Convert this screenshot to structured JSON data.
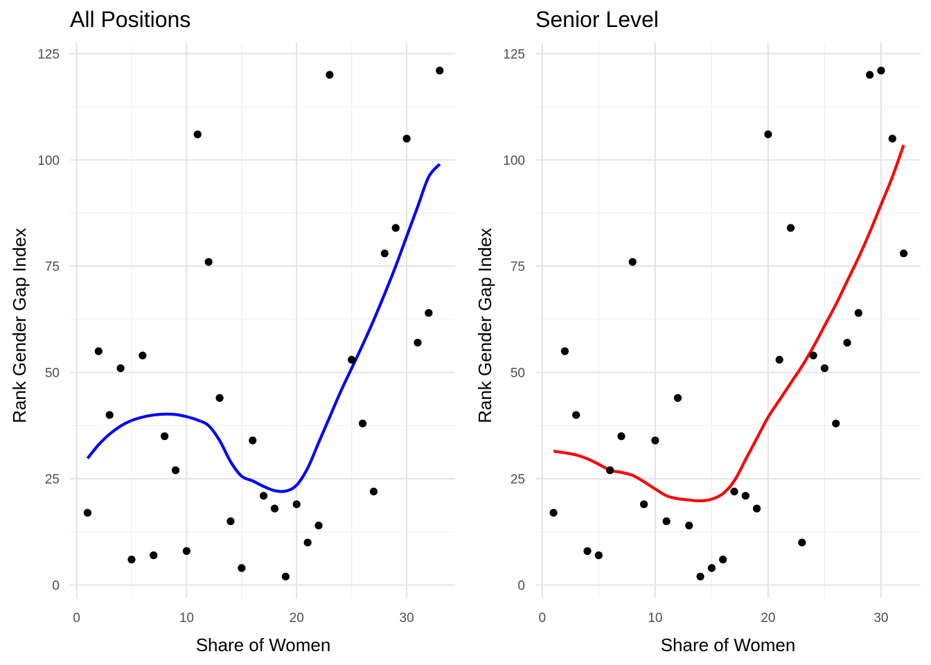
{
  "chart_data": [
    {
      "type": "scatter",
      "title": "All Positions",
      "xlabel": "Share of Women",
      "ylabel": "Rank Gender Gap Index",
      "xlim": [
        -0.6,
        34.4
      ],
      "ylim": [
        -3,
        127.5
      ],
      "x_ticks": [
        0,
        10,
        20,
        30
      ],
      "y_ticks": [
        0,
        25,
        50,
        75,
        100,
        125
      ],
      "grid": true,
      "legend": "none",
      "point_color": "#000000",
      "smooth_color": "#0000ff",
      "points": [
        {
          "x": 1,
          "y": 17
        },
        {
          "x": 2,
          "y": 55
        },
        {
          "x": 3,
          "y": 40
        },
        {
          "x": 4,
          "y": 51
        },
        {
          "x": 5,
          "y": 6
        },
        {
          "x": 6,
          "y": 54
        },
        {
          "x": 7,
          "y": 7
        },
        {
          "x": 8,
          "y": 35
        },
        {
          "x": 9,
          "y": 27
        },
        {
          "x": 10,
          "y": 8
        },
        {
          "x": 11,
          "y": 106
        },
        {
          "x": 12,
          "y": 76
        },
        {
          "x": 13,
          "y": 44
        },
        {
          "x": 14,
          "y": 15
        },
        {
          "x": 15,
          "y": 4
        },
        {
          "x": 16,
          "y": 34
        },
        {
          "x": 17,
          "y": 21
        },
        {
          "x": 18,
          "y": 18
        },
        {
          "x": 19,
          "y": 2
        },
        {
          "x": 20,
          "y": 19
        },
        {
          "x": 21,
          "y": 10
        },
        {
          "x": 22,
          "y": 14
        },
        {
          "x": 23,
          "y": 120
        },
        {
          "x": 25,
          "y": 53
        },
        {
          "x": 26,
          "y": 38
        },
        {
          "x": 27,
          "y": 22
        },
        {
          "x": 28,
          "y": 78
        },
        {
          "x": 29,
          "y": 84
        },
        {
          "x": 30,
          "y": 105
        },
        {
          "x": 31,
          "y": 57
        },
        {
          "x": 32,
          "y": 64
        },
        {
          "x": 33,
          "y": 121
        }
      ],
      "smooth": [
        {
          "x": 1,
          "y": 29.8
        },
        {
          "x": 2,
          "y": 33
        },
        {
          "x": 3,
          "y": 35.5
        },
        {
          "x": 4,
          "y": 37.4
        },
        {
          "x": 5,
          "y": 38.7
        },
        {
          "x": 6,
          "y": 39.5
        },
        {
          "x": 7,
          "y": 40
        },
        {
          "x": 8,
          "y": 40.2
        },
        {
          "x": 9,
          "y": 40.1
        },
        {
          "x": 10,
          "y": 39.6
        },
        {
          "x": 11,
          "y": 38.8
        },
        {
          "x": 12,
          "y": 37.5
        },
        {
          "x": 13,
          "y": 34
        },
        {
          "x": 14,
          "y": 29
        },
        {
          "x": 15,
          "y": 25.6
        },
        {
          "x": 16,
          "y": 24.5
        },
        {
          "x": 17,
          "y": 23.2
        },
        {
          "x": 18,
          "y": 22.2
        },
        {
          "x": 19,
          "y": 22.1
        },
        {
          "x": 20,
          "y": 23.5
        },
        {
          "x": 21,
          "y": 27.5
        },
        {
          "x": 22,
          "y": 33.5
        },
        {
          "x": 23,
          "y": 39.5
        },
        {
          "x": 24,
          "y": 45.5
        },
        {
          "x": 25,
          "y": 51
        },
        {
          "x": 26,
          "y": 56.5
        },
        {
          "x": 27,
          "y": 62.3
        },
        {
          "x": 28,
          "y": 68.5
        },
        {
          "x": 29,
          "y": 75
        },
        {
          "x": 30,
          "y": 82
        },
        {
          "x": 31,
          "y": 89
        },
        {
          "x": 32,
          "y": 96
        },
        {
          "x": 33,
          "y": 99
        }
      ]
    },
    {
      "type": "scatter",
      "title": "Senior Level",
      "xlabel": "Share of Women",
      "ylabel": "Rank Gender Gap Index",
      "xlim": [
        -0.6,
        33.5
      ],
      "ylim": [
        -3,
        127.5
      ],
      "x_ticks": [
        0,
        10,
        20,
        30
      ],
      "y_ticks": [
        0,
        25,
        50,
        75,
        100,
        125
      ],
      "grid": true,
      "legend": "none",
      "point_color": "#000000",
      "smooth_color": "#ff0000",
      "points": [
        {
          "x": 1,
          "y": 17
        },
        {
          "x": 2,
          "y": 55
        },
        {
          "x": 3,
          "y": 40
        },
        {
          "x": 4,
          "y": 8
        },
        {
          "x": 5,
          "y": 7
        },
        {
          "x": 6,
          "y": 27
        },
        {
          "x": 7,
          "y": 35
        },
        {
          "x": 8,
          "y": 76
        },
        {
          "x": 9,
          "y": 19
        },
        {
          "x": 10,
          "y": 34
        },
        {
          "x": 11,
          "y": 15
        },
        {
          "x": 12,
          "y": 44
        },
        {
          "x": 13,
          "y": 14
        },
        {
          "x": 14,
          "y": 2
        },
        {
          "x": 15,
          "y": 4
        },
        {
          "x": 16,
          "y": 6
        },
        {
          "x": 17,
          "y": 22
        },
        {
          "x": 18,
          "y": 21
        },
        {
          "x": 19,
          "y": 18
        },
        {
          "x": 20,
          "y": 106
        },
        {
          "x": 21,
          "y": 53
        },
        {
          "x": 22,
          "y": 84
        },
        {
          "x": 23,
          "y": 10
        },
        {
          "x": 24,
          "y": 54
        },
        {
          "x": 25,
          "y": 51
        },
        {
          "x": 26,
          "y": 38
        },
        {
          "x": 27,
          "y": 57
        },
        {
          "x": 28,
          "y": 64
        },
        {
          "x": 29,
          "y": 120
        },
        {
          "x": 30,
          "y": 121
        },
        {
          "x": 31,
          "y": 105
        },
        {
          "x": 32,
          "y": 78
        }
      ],
      "smooth": [
        {
          "x": 1,
          "y": 31.5
        },
        {
          "x": 2,
          "y": 31.1
        },
        {
          "x": 3,
          "y": 30.6
        },
        {
          "x": 4,
          "y": 29.7
        },
        {
          "x": 5,
          "y": 28.4
        },
        {
          "x": 6,
          "y": 27
        },
        {
          "x": 7,
          "y": 26.5
        },
        {
          "x": 8,
          "y": 25.8
        },
        {
          "x": 9,
          "y": 24.3
        },
        {
          "x": 10,
          "y": 22.6
        },
        {
          "x": 11,
          "y": 21
        },
        {
          "x": 12,
          "y": 20.3
        },
        {
          "x": 13,
          "y": 20
        },
        {
          "x": 14,
          "y": 19.8
        },
        {
          "x": 15,
          "y": 20.2
        },
        {
          "x": 16,
          "y": 21.5
        },
        {
          "x": 17,
          "y": 24.5
        },
        {
          "x": 18,
          "y": 29.5
        },
        {
          "x": 19,
          "y": 34.5
        },
        {
          "x": 20,
          "y": 39.5
        },
        {
          "x": 21,
          "y": 43.5
        },
        {
          "x": 22,
          "y": 47.5
        },
        {
          "x": 23,
          "y": 51.5
        },
        {
          "x": 24,
          "y": 56
        },
        {
          "x": 25,
          "y": 61
        },
        {
          "x": 26,
          "y": 66
        },
        {
          "x": 27,
          "y": 71.5
        },
        {
          "x": 28,
          "y": 77
        },
        {
          "x": 29,
          "y": 83
        },
        {
          "x": 30,
          "y": 89.5
        },
        {
          "x": 31,
          "y": 96
        },
        {
          "x": 32,
          "y": 103.5
        }
      ]
    }
  ]
}
